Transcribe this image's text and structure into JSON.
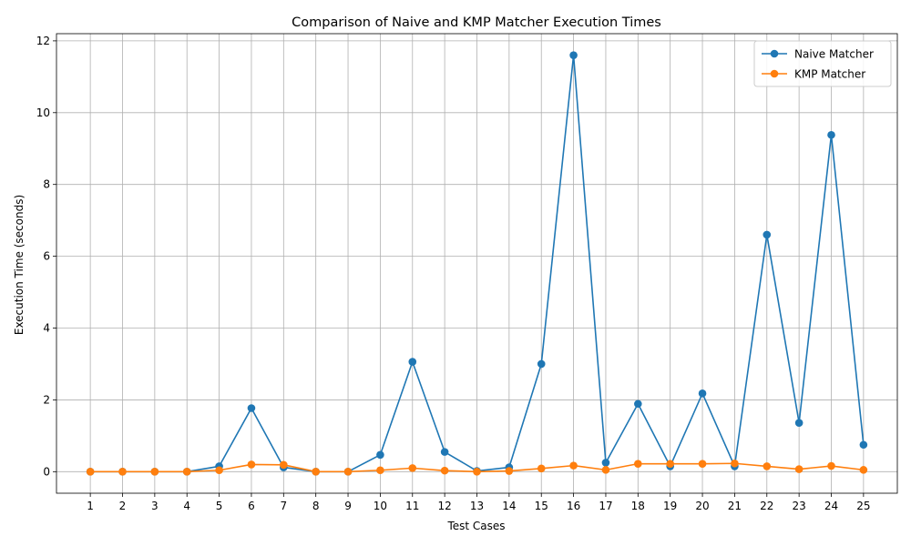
{
  "chart_data": {
    "type": "line",
    "title": "Comparison of Naive and KMP Matcher Execution Times",
    "xlabel": "Test Cases",
    "ylabel": "Execution Time (seconds)",
    "categories": [
      "1",
      "2",
      "3",
      "4",
      "5",
      "6",
      "7",
      "8",
      "9",
      "10",
      "11",
      "12",
      "13",
      "14",
      "15",
      "16",
      "17",
      "18",
      "19",
      "20",
      "21",
      "22",
      "23",
      "24",
      "25"
    ],
    "ylim": [
      -0.6,
      12.2
    ],
    "yticks": [
      0,
      2,
      4,
      6,
      8,
      10,
      12
    ],
    "grid": true,
    "legend_position": "top-right",
    "series": [
      {
        "name": "Naive Matcher",
        "color": "#1f77b4",
        "marker": "circle",
        "values": [
          0.0,
          0.0,
          0.0,
          0.0,
          0.15,
          1.77,
          0.12,
          0.0,
          0.0,
          0.47,
          3.06,
          0.55,
          0.02,
          0.12,
          3.0,
          11.6,
          0.25,
          1.89,
          0.15,
          2.18,
          0.15,
          6.6,
          1.36,
          9.38,
          0.75
        ]
      },
      {
        "name": "KMP Matcher",
        "color": "#ff7f0e",
        "marker": "circle",
        "values": [
          0.0,
          0.0,
          0.0,
          0.0,
          0.04,
          0.2,
          0.19,
          0.0,
          0.0,
          0.04,
          0.1,
          0.03,
          0.0,
          0.02,
          0.09,
          0.17,
          0.05,
          0.22,
          0.22,
          0.22,
          0.23,
          0.15,
          0.07,
          0.16,
          0.05
        ]
      }
    ]
  }
}
